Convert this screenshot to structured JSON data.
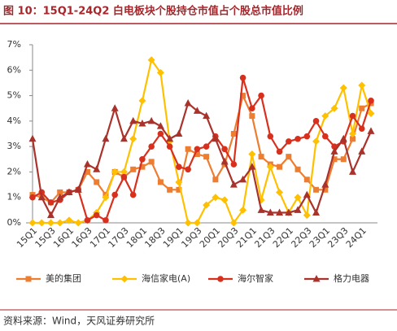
{
  "chart_data": {
    "type": "line",
    "title": "图 10：15Q1-24Q2 白电板块个股持仓市值占个股总市值比例",
    "source": "资料来源：Wind，天风证券研究所",
    "categories": [
      "15Q1",
      null,
      "15Q3",
      null,
      "16Q1",
      null,
      "16Q3",
      null,
      "17Q1",
      null,
      "17Q3",
      null,
      "18Q1",
      null,
      "18Q3",
      null,
      "19Q1",
      null,
      "19Q3",
      null,
      "20Q1",
      null,
      "20Q3",
      null,
      "21Q1",
      null,
      "21Q3",
      null,
      "22Q1",
      null,
      "22Q3",
      null,
      "23Q1",
      null,
      "23Q3",
      null,
      "24Q1",
      null
    ],
    "series": [
      {
        "name": "美的集团",
        "color": "#ed7d31",
        "marker": "square",
        "values": [
          1.1,
          1.0,
          0.8,
          1.2,
          1.2,
          1.3,
          2.0,
          1.6,
          1.1,
          2.0,
          1.8,
          2.1,
          2.2,
          2.4,
          1.6,
          1.3,
          1.3,
          2.9,
          2.7,
          2.6,
          1.7,
          2.3,
          3.5,
          5.0,
          4.2,
          2.6,
          2.3,
          2.2,
          2.6,
          2.1,
          1.7,
          1.3,
          1.3,
          2.5,
          2.5,
          3.3,
          4.5,
          4.7
        ]
      },
      {
        "name": "海信家电(A)",
        "color": "#ffc000",
        "marker": "diamond",
        "values": [
          0,
          0,
          0,
          0,
          0.1,
          0,
          0.1,
          0.4,
          1.0,
          2.0,
          2.0,
          3.3,
          4.8,
          6.4,
          5.9,
          3.2,
          1.6,
          0,
          0,
          0.7,
          1.0,
          0.9,
          0,
          0.5,
          2.7,
          0.9,
          2.2,
          1.2,
          0.4,
          1.0,
          0.3,
          3.2,
          4.2,
          4.5,
          5.3,
          3.5,
          5.4,
          4.3
        ]
      },
      {
        "name": "海尔智家",
        "color": "#d9301e",
        "marker": "circle",
        "values": [
          1.0,
          1.2,
          0.8,
          0.9,
          1.2,
          1.3,
          0.1,
          0.3,
          0.1,
          1.1,
          1.8,
          1.1,
          2.5,
          3.0,
          3.5,
          3.0,
          2.2,
          2.1,
          2.9,
          3.0,
          3.4,
          2.9,
          2.3,
          5.7,
          4.5,
          5.0,
          3.4,
          2.8,
          3.2,
          3.3,
          3.4,
          4.0,
          3.4,
          3.0,
          3.2,
          4.2,
          3.7,
          4.8
        ]
      },
      {
        "name": "格力电器",
        "color": "#a9322b",
        "marker": "triangle",
        "values": [
          3.3,
          1.0,
          0.3,
          1.0,
          1.2,
          1.3,
          2.3,
          2.1,
          3.3,
          4.5,
          3.3,
          4.0,
          3.9,
          4.0,
          3.8,
          3.3,
          3.5,
          4.7,
          4.4,
          4.2,
          3.3,
          2.4,
          1.5,
          1.7,
          2.2,
          0.5,
          0.4,
          0.4,
          0.4,
          0.5,
          1.1,
          0.4,
          1.5,
          2.8,
          3.3,
          2.0,
          2.8,
          3.6
        ]
      }
    ],
    "ylim": [
      0,
      7
    ],
    "yticks": [
      {
        "value": 0,
        "label": "0%"
      },
      {
        "value": 1,
        "label": "1%"
      },
      {
        "value": 2,
        "label": "2%"
      },
      {
        "value": 3,
        "label": "3%"
      },
      {
        "value": 4,
        "label": "4%"
      },
      {
        "value": 5,
        "label": "5%"
      },
      {
        "value": 6,
        "label": "6%"
      },
      {
        "value": 7,
        "label": "7%"
      }
    ],
    "grid": false,
    "legend": "bottom"
  }
}
